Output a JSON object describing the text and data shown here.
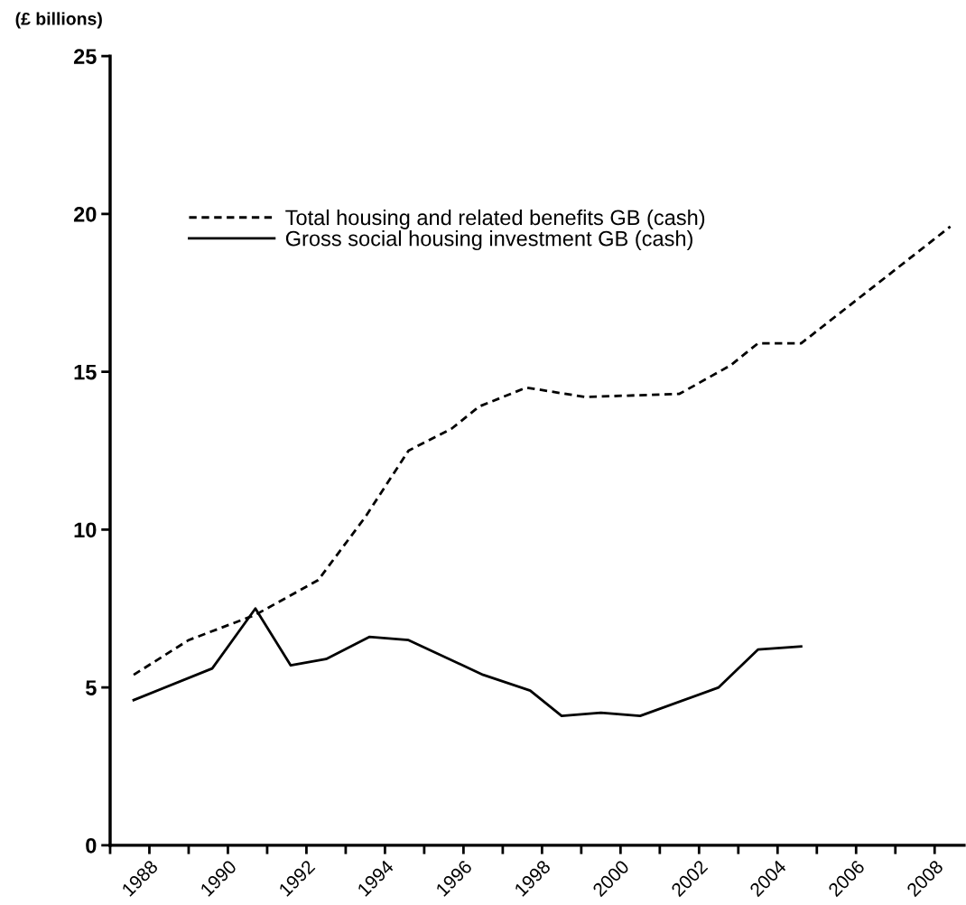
{
  "chart_data": {
    "type": "line",
    "ylabel": "(£ billions)",
    "series": [
      {
        "name": "Total housing and related benefits GB (cash)",
        "color": "#000000",
        "line_style": "dashed",
        "x": [
          1987.6,
          1989.0,
          1990.7,
          1992.3,
          1993.5,
          1994.6,
          1995.7,
          1996.4,
          1997.6,
          1999.1,
          2001.5,
          2002.8,
          2003.5,
          2004.6,
          2008.4
        ],
        "values": [
          5.4,
          6.5,
          7.3,
          8.4,
          10.4,
          12.5,
          13.2,
          13.9,
          14.5,
          14.2,
          14.3,
          15.2,
          15.9,
          15.9,
          19.6
        ]
      },
      {
        "name": "Gross social housing investment GB (cash)",
        "color": "#000000",
        "line_style": "solid",
        "x": [
          1987.6,
          1989.6,
          1990.7,
          1991.6,
          1992.5,
          1993.6,
          1994.6,
          1996.5,
          1997.7,
          1998.5,
          1999.5,
          2000.5,
          2002.5,
          2003.5,
          2004.6
        ],
        "values": [
          4.6,
          5.6,
          7.5,
          5.7,
          5.9,
          6.6,
          6.5,
          5.4,
          4.9,
          4.1,
          4.2,
          4.1,
          5.0,
          6.2,
          6.3
        ]
      }
    ],
    "xlim": [
      1987,
      2008.75
    ],
    "xticks": [
      {
        "value": 1987,
        "label": null
      },
      1988,
      {
        "value": 1989,
        "label": null
      },
      1990,
      {
        "value": 1991,
        "label": null
      },
      1992,
      {
        "value": 1993,
        "label": null
      },
      1994,
      {
        "value": 1995,
        "label": null
      },
      1996,
      {
        "value": 1997,
        "label": null
      },
      1998,
      {
        "value": 1999,
        "label": null
      },
      2000,
      {
        "value": 2001,
        "label": null
      },
      2002,
      {
        "value": 2003,
        "label": null
      },
      2004,
      {
        "value": 2005,
        "label": null
      },
      2006,
      {
        "value": 2007,
        "label": null
      },
      2008
    ],
    "ylim": [
      0,
      25
    ],
    "yticks": [
      0,
      5,
      10,
      15,
      20,
      25
    ],
    "grid": false,
    "legend": "top left",
    "marker": "none"
  }
}
